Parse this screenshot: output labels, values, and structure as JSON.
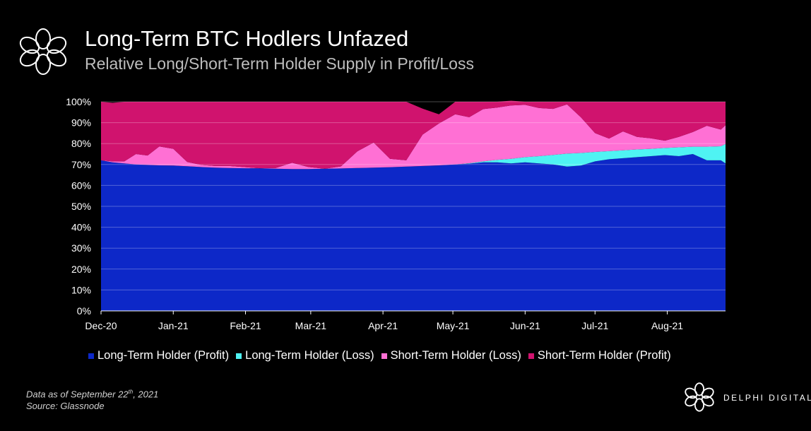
{
  "header": {
    "title": "Long-Term BTC Hodlers Unfazed",
    "subtitle": "Relative Long/Short-Term Holder Supply in Profit/Loss",
    "logo_icon": "flower-ring-logo-icon"
  },
  "chart_data": {
    "type": "area",
    "stacked": true,
    "ylim": [
      0,
      100
    ],
    "ytick_labels": [
      "0%",
      "10%",
      "20%",
      "30%",
      "40%",
      "50%",
      "60%",
      "70%",
      "80%",
      "90%",
      "100%"
    ],
    "x_ticks": [
      "Dec-20",
      "Jan-21",
      "Feb-21",
      "Mar-21",
      "Apr-21",
      "May-21",
      "Jun-21",
      "Jul-21",
      "Aug-21"
    ],
    "grid": true,
    "legend_position": "bottom",
    "x_days": [
      0,
      5,
      10,
      15,
      20,
      25,
      31,
      37,
      43,
      49,
      55,
      62,
      68,
      75,
      82,
      89,
      96,
      103,
      110,
      117,
      124,
      131,
      138,
      145,
      152,
      158,
      164,
      170,
      176,
      182,
      188,
      194,
      200,
      206,
      212,
      218,
      224,
      230,
      236,
      242,
      248,
      254,
      260,
      266,
      268
    ],
    "series": [
      {
        "name": "Long-Term Holder (Profit)",
        "color": "#0d28c8",
        "values": [
          72,
          71,
          70.5,
          70,
          69.8,
          69.6,
          69.5,
          69.2,
          68.8,
          68.5,
          68.3,
          68.2,
          68.2,
          68,
          67.8,
          67.8,
          68,
          68.1,
          68.3,
          68.5,
          68.7,
          69,
          69.3,
          69.6,
          70,
          70.4,
          71,
          71,
          70.5,
          71,
          70.5,
          70,
          69,
          69.5,
          71.5,
          72.5,
          73,
          73.5,
          74,
          74.5,
          74,
          75,
          72,
          72,
          70.5
        ]
      },
      {
        "name": "Long-Term Holder (Loss)",
        "color": "#4ff3f3",
        "values": [
          0,
          0,
          0,
          0,
          0,
          0,
          0,
          0,
          0,
          0,
          0,
          0,
          0,
          0,
          0,
          0,
          0,
          0,
          0,
          0,
          0,
          0,
          0,
          0,
          0,
          0.2,
          0.5,
          1.2,
          2.2,
          2.5,
          3.5,
          4.6,
          6.2,
          6,
          4.5,
          3.9,
          3.8,
          3.7,
          3.5,
          3.4,
          4.2,
          3.5,
          6.5,
          6.7,
          9.3
        ]
      },
      {
        "name": "Short-Term Holder (Loss)",
        "color": "#ff70d4",
        "values": [
          0,
          0.5,
          1,
          5,
          4.5,
          9,
          8,
          2,
          1,
          0.8,
          1,
          0.5,
          0,
          0.3,
          3,
          1,
          0,
          1,
          8,
          12,
          4,
          3,
          15,
          20,
          24,
          22,
          25,
          25,
          25.5,
          25,
          23,
          22,
          23.5,
          17,
          9,
          6,
          9,
          6,
          5,
          3.5,
          5,
          7,
          10,
          8,
          9
        ]
      },
      {
        "name": "Short-Term Holder (Profit)",
        "color": "#d0136e",
        "values": [
          28,
          28,
          28.5,
          25,
          25.7,
          21.4,
          22.5,
          28.8,
          30.2,
          30.7,
          30.7,
          31.3,
          31.8,
          31.7,
          29.2,
          31.2,
          32,
          30.9,
          23.7,
          19.5,
          27.3,
          28,
          12.4,
          4.4,
          6,
          7.4,
          3.5,
          2.8,
          2.3,
          1.5,
          3,
          3.4,
          1.3,
          7.5,
          15,
          17.6,
          14.2,
          16.8,
          17.5,
          18.6,
          16.8,
          14.5,
          11.5,
          13.3,
          11.2
        ]
      }
    ]
  },
  "legend": {
    "items": [
      {
        "label": "Long-Term Holder (Profit)",
        "color": "#0d28c8"
      },
      {
        "label": "Long-Term Holder (Loss)",
        "color": "#4ff3f3"
      },
      {
        "label": "Short-Term Holder (Loss)",
        "color": "#ff70d4"
      },
      {
        "label": "Short-Term Holder (Profit)",
        "color": "#d0136e"
      }
    ]
  },
  "footer": {
    "data_as_of_prefix": "Data as of September 22",
    "data_as_of_sup": "th",
    "data_as_of_suffix": ", 2021",
    "source": "Source: Glassnode",
    "brand": "DELPHI DIGITAL",
    "brand_icon": "flower-ring-logo-icon"
  }
}
